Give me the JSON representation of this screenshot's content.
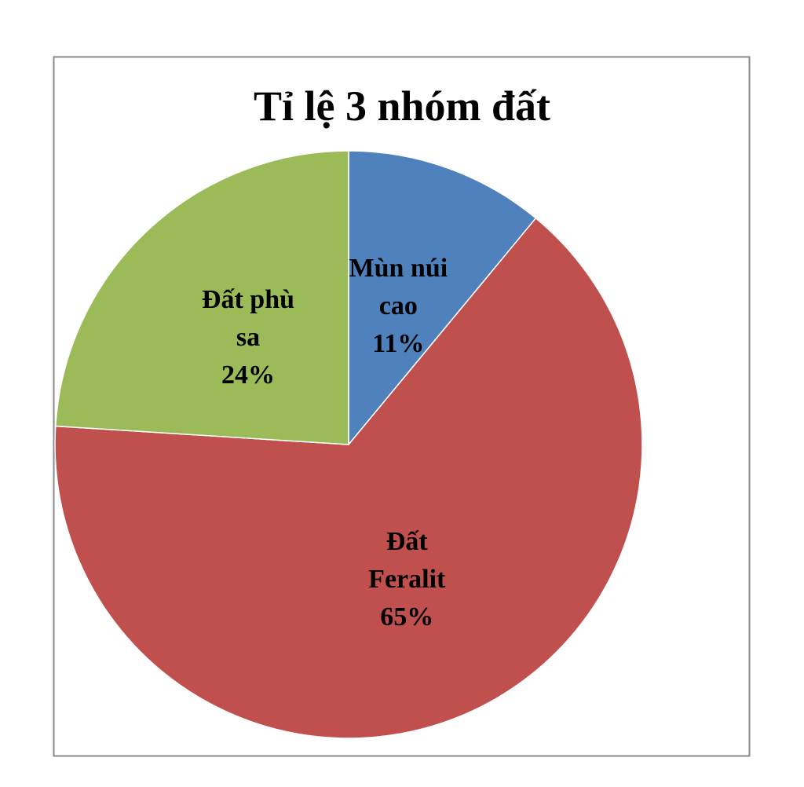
{
  "chart_data": {
    "type": "pie",
    "title": "Tỉ lệ 3 nhóm đất",
    "categories": [
      "Mùn núi cao",
      "Đất Feralit",
      "Đất phù sa"
    ],
    "values": [
      11,
      65,
      24
    ],
    "value_labels": [
      "11%",
      "65%",
      "24%"
    ],
    "colors": [
      "#4f81bd",
      "#c0504d",
      "#9bbb59"
    ]
  }
}
